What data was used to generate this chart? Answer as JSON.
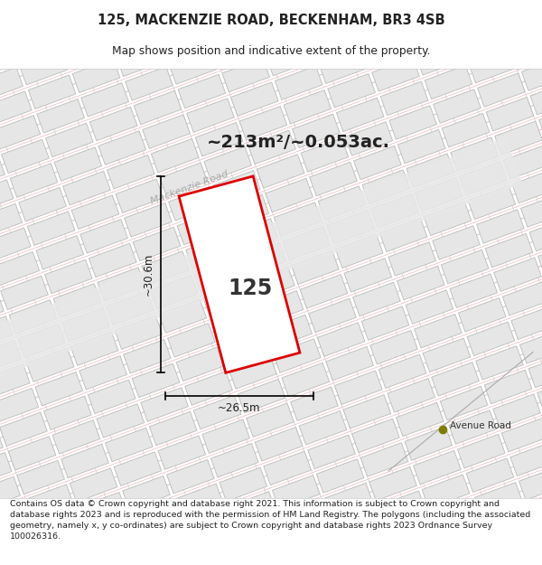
{
  "title": "125, MACKENZIE ROAD, BECKENHAM, BR3 4SB",
  "subtitle": "Map shows position and indicative extent of the property.",
  "footer": "Contains OS data © Crown copyright and database right 2021. This information is subject to Crown copyright and database rights 2023 and is reproduced with the permission of HM Land Registry. The polygons (including the associated geometry, namely x, y co-ordinates) are subject to Crown copyright and database rights 2023 Ordnance Survey 100026316.",
  "area_label": "~213m²/~0.053ac.",
  "road_label": "Mackenzie Road",
  "avenue_road_label": "Avenue Road",
  "number_label": "125",
  "dim_height": "~30.6m",
  "dim_width": "~26.5m",
  "map_bg": "#f2f2f2",
  "plot_outline_color": "#dd0000",
  "title_color": "#222222",
  "footer_color": "#222222",
  "avenue_dot_color": "#7d7d00",
  "block_face_color": "#e6e6e6",
  "block_edge_color": "#bbbbbb",
  "road_fill_color": "#ebebeb",
  "hatch_red": "#f0aaaa",
  "hatch_gray": "#cccccc"
}
